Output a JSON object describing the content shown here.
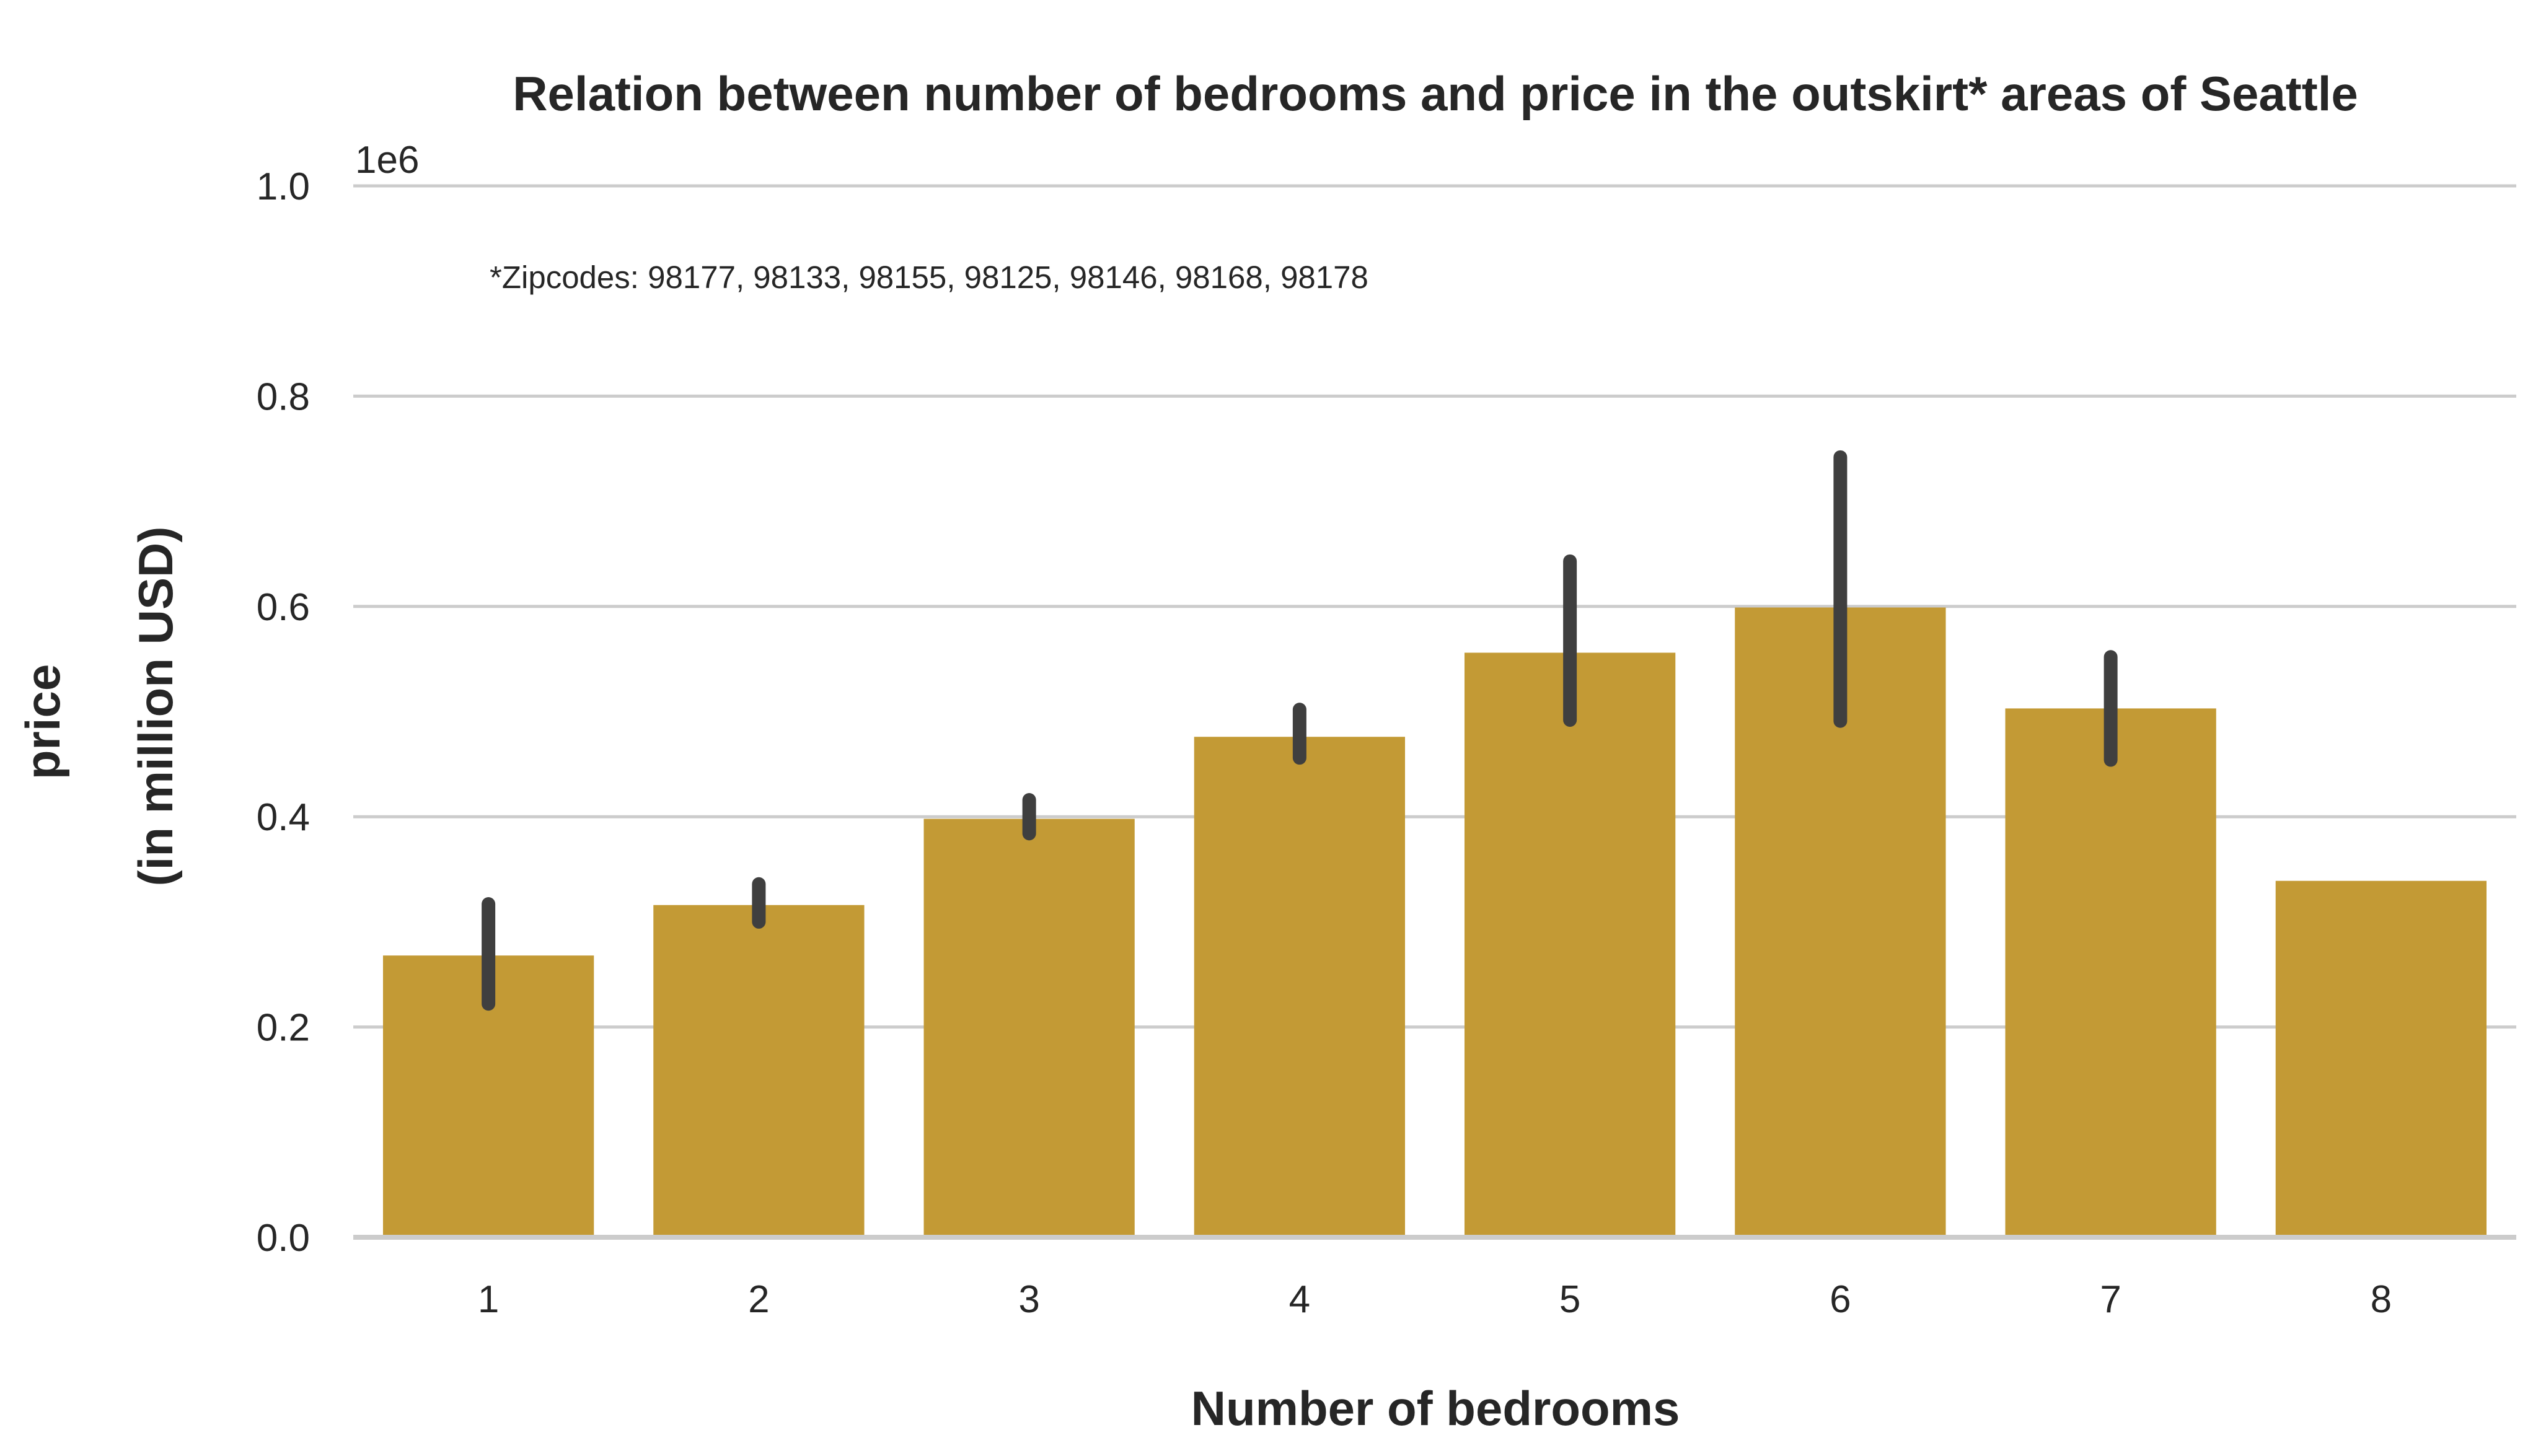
{
  "chart_data": {
    "type": "bar",
    "title": "Relation between number of bedrooms and price in the outskirt* areas of Seattle",
    "xlabel": "Number of bedrooms",
    "ylabel_lines": [
      "price",
      "(in million USD)"
    ],
    "y_offset_label": "1e6",
    "annotation": "*Zipcodes: 98177, 98133, 98155, 98125, 98146, 98168, 98178",
    "categories": [
      "1",
      "2",
      "3",
      "4",
      "5",
      "6",
      "7",
      "8"
    ],
    "values": [
      268000,
      316000,
      398000,
      476000,
      556000,
      599000,
      503000,
      339000
    ],
    "error_bars": [
      [
        222000,
        317000
      ],
      [
        300000,
        336000
      ],
      [
        384000,
        416000
      ],
      [
        456000,
        502000
      ],
      [
        492000,
        643000
      ],
      [
        491000,
        742000
      ],
      [
        454000,
        552000
      ],
      null
    ],
    "yticks": [
      0.0,
      0.2,
      0.4,
      0.6,
      0.8,
      1.0
    ],
    "ytick_labels": [
      "0.0",
      "0.2",
      "0.4",
      "0.6",
      "0.8",
      "1.0"
    ],
    "ylim": [
      0,
      1000000
    ],
    "grid": true,
    "bar_color": "#c39a35",
    "errorbar_color": "#3f3f3f",
    "grid_color": "#cccccc"
  }
}
